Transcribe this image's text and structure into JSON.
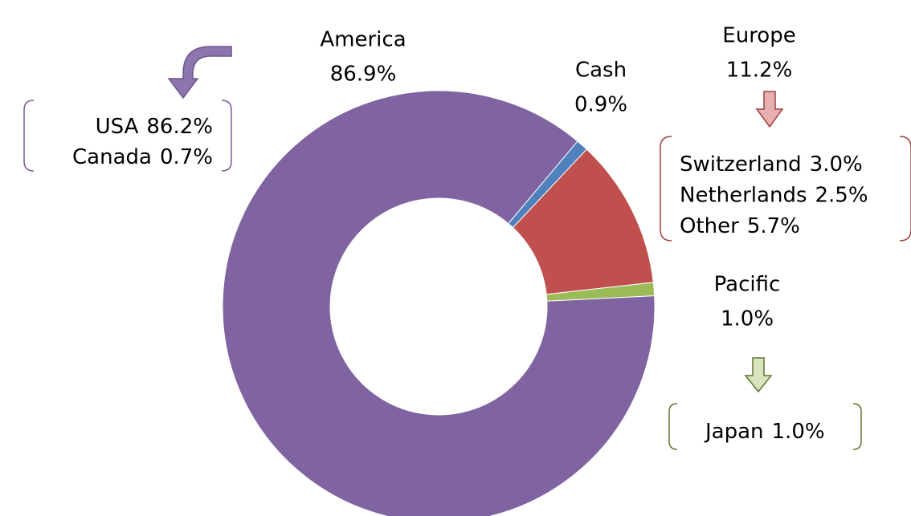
{
  "chart_data": {
    "type": "donut",
    "categories": [
      "Cash",
      "Europe",
      "Pacific",
      "America"
    ],
    "values": [
      0.9,
      11.2,
      1.0,
      86.9
    ],
    "value_labels": [
      "0.9%",
      "11.2%",
      "1.0%",
      "86.9%"
    ],
    "colors": [
      "#4f81bd",
      "#c0504d",
      "#9bbb59",
      "#8064a2"
    ],
    "breakdowns": [
      {
        "region": "America",
        "items": [
          {
            "name": "USA",
            "label": "86.2%"
          },
          {
            "name": "Canada",
            "label": "0.7%"
          }
        ]
      },
      {
        "region": "Europe",
        "items": [
          {
            "name": "Switzerland",
            "label": "3.0%"
          },
          {
            "name": "Netherlands",
            "label": "2.5%"
          },
          {
            "name": "Other",
            "label": "5.7%"
          }
        ]
      },
      {
        "region": "Pacific",
        "items": [
          {
            "name": "Japan",
            "label": "1.0%"
          }
        ]
      }
    ]
  }
}
